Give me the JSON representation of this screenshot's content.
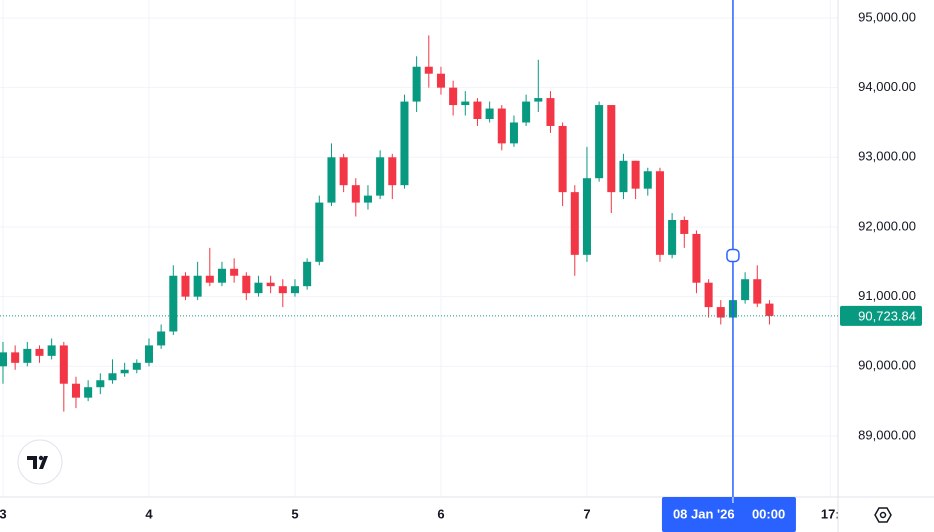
{
  "chart_data": {
    "type": "candlestick",
    "up_color": "#089981",
    "down_color": "#f23645",
    "x": [
      0,
      2,
      4,
      6,
      8,
      10,
      12,
      14,
      16,
      18,
      20,
      22,
      24,
      26,
      28,
      30,
      32,
      34,
      36,
      38,
      40,
      42,
      44,
      46,
      48,
      50,
      52,
      54,
      56,
      58,
      60,
      62,
      64,
      66,
      68,
      70,
      72,
      74,
      76,
      78,
      80,
      82,
      84,
      86,
      88,
      90,
      92,
      94,
      96,
      98,
      100,
      102,
      104,
      106,
      108,
      110,
      112,
      114,
      116,
      118,
      120,
      122,
      124,
      126
    ],
    "open": [
      90000,
      90200,
      90050,
      90250,
      90150,
      90300,
      89750,
      89550,
      89700,
      89800,
      89900,
      89950,
      90050,
      90300,
      90500,
      91300,
      91000,
      91300,
      91200,
      91400,
      91300,
      91050,
      91200,
      91150,
      91050,
      91150,
      91500,
      92350,
      93000,
      92600,
      92350,
      92450,
      93000,
      92600,
      93800,
      94300,
      94200,
      94000,
      93750,
      93800,
      93550,
      93700,
      93200,
      93500,
      93800,
      93850,
      93450,
      92500,
      91600,
      92700,
      93750,
      92500,
      92950,
      92550,
      92800,
      91600,
      92100,
      91900,
      91200,
      90850,
      90700,
      90950,
      91250,
      90900
    ],
    "high": [
      90350,
      90300,
      90350,
      90300,
      90400,
      90350,
      89850,
      89800,
      89900,
      90100,
      90050,
      90100,
      90400,
      90600,
      91450,
      91350,
      91500,
      91700,
      91500,
      91550,
      91350,
      91300,
      91300,
      91250,
      91250,
      91550,
      92450,
      93200,
      93050,
      92700,
      92600,
      93100,
      93050,
      93900,
      94450,
      94750,
      94300,
      94100,
      93950,
      93850,
      93800,
      93750,
      93600,
      93900,
      94400,
      93950,
      93500,
      92600,
      93150,
      93800,
      93750,
      93050,
      92950,
      92850,
      92850,
      92200,
      92150,
      91950,
      91250,
      90950,
      91050,
      91350,
      91450,
      90950
    ],
    "low": [
      89750,
      89950,
      90000,
      90050,
      90100,
      89350,
      89400,
      89500,
      89600,
      89750,
      89850,
      89900,
      90000,
      90250,
      90450,
      90950,
      90950,
      91150,
      91150,
      91200,
      90950,
      91000,
      91050,
      90850,
      91000,
      91100,
      91450,
      92300,
      92500,
      92150,
      92250,
      92400,
      92400,
      92550,
      93650,
      94000,
      93900,
      93600,
      93600,
      93450,
      93500,
      93100,
      93150,
      93450,
      93650,
      93350,
      92300,
      91300,
      91500,
      92650,
      92200,
      92400,
      92400,
      92450,
      91500,
      91550,
      91700,
      91050,
      90700,
      90600,
      90650,
      90900,
      90850,
      90600
    ],
    "close": [
      90200,
      90050,
      90250,
      90150,
      90300,
      89750,
      89550,
      89700,
      89800,
      89900,
      89950,
      90050,
      90300,
      90500,
      91300,
      91000,
      91300,
      91200,
      91400,
      91300,
      91050,
      91200,
      91150,
      91050,
      91150,
      91500,
      92350,
      93000,
      92600,
      92350,
      92450,
      93000,
      92600,
      93800,
      94300,
      94200,
      94000,
      93750,
      93800,
      93550,
      93700,
      93200,
      93500,
      93800,
      93850,
      93450,
      92500,
      91600,
      92700,
      93750,
      92500,
      92950,
      92550,
      92800,
      91600,
      92100,
      91900,
      91200,
      90850,
      90700,
      90950,
      91250,
      90900,
      90723.84
    ],
    "xlim": [
      -0.49,
      137.27
    ],
    "xticks": [
      {
        "value": 0,
        "label": "3"
      },
      {
        "value": 24,
        "label": "4"
      },
      {
        "value": 48,
        "label": "5"
      },
      {
        "value": 72,
        "label": "6"
      },
      {
        "value": 96,
        "label": "7"
      },
      {
        "value": 136,
        "label": "17:"
      }
    ],
    "ylim": [
      88124,
      95258
    ],
    "yticks": [
      {
        "value": 89000,
        "label": "89,000.00"
      },
      {
        "value": 90000,
        "label": "90,000.00"
      },
      {
        "value": 91000,
        "label": "91,000.00"
      },
      {
        "value": 92000,
        "label": "92,000.00"
      },
      {
        "value": 93000,
        "label": "93,000.00"
      },
      {
        "value": 94000,
        "label": "94,000.00"
      },
      {
        "value": 95000,
        "label": "95,000.00"
      }
    ],
    "grid": true,
    "last_price": {
      "value": 90723.84,
      "label": "90,723.84"
    },
    "crosshair": {
      "x": 120,
      "date": "08 Jan '26",
      "time": "00:00",
      "color": "#2962ff"
    },
    "marker_price": 91590
  }
}
